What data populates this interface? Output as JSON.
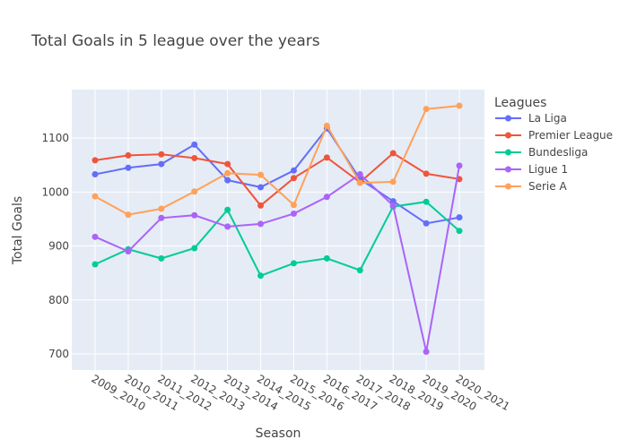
{
  "chart_data": {
    "type": "line",
    "title": "Total Goals in 5 league over the years",
    "xlabel": "Season",
    "ylabel": "Total Goals",
    "legend_title": "Leagues",
    "legend_position": "right",
    "grid": true,
    "ylim": [
      670,
      1190
    ],
    "yticks": [
      700,
      800,
      900,
      1000,
      1100
    ],
    "categories": [
      "2009_2010",
      "2010_2011",
      "2011_2012",
      "2012_2013",
      "2013_2014",
      "2014_2015",
      "2015_2016",
      "2016_2017",
      "2017_2018",
      "2018_2019",
      "2019_2020",
      "2020_2021"
    ],
    "series": [
      {
        "name": "La Liga",
        "color": "#636efa",
        "values": [
          1033,
          1045,
          1052,
          1088,
          1022,
          1009,
          1040,
          1118,
          1024,
          983,
          942,
          953
        ]
      },
      {
        "name": "Premier League",
        "color": "#ef553b",
        "values": [
          1059,
          1068,
          1070,
          1063,
          1052,
          975,
          1026,
          1064,
          1018,
          1072,
          1034,
          1024
        ]
      },
      {
        "name": "Bundesliga",
        "color": "#00cc96",
        "values": [
          866,
          894,
          877,
          896,
          967,
          845,
          868,
          877,
          855,
          973,
          982,
          928
        ]
      },
      {
        "name": "Ligue 1",
        "color": "#ab63fa",
        "values": [
          917,
          890,
          952,
          957,
          936,
          941,
          960,
          991,
          1033,
          975,
          704,
          1049
        ]
      },
      {
        "name": "Serie A",
        "color": "#ffa15a",
        "values": [
          992,
          958,
          969,
          1001,
          1035,
          1032,
          976,
          1123,
          1017,
          1019,
          1154,
          1160
        ]
      }
    ]
  }
}
